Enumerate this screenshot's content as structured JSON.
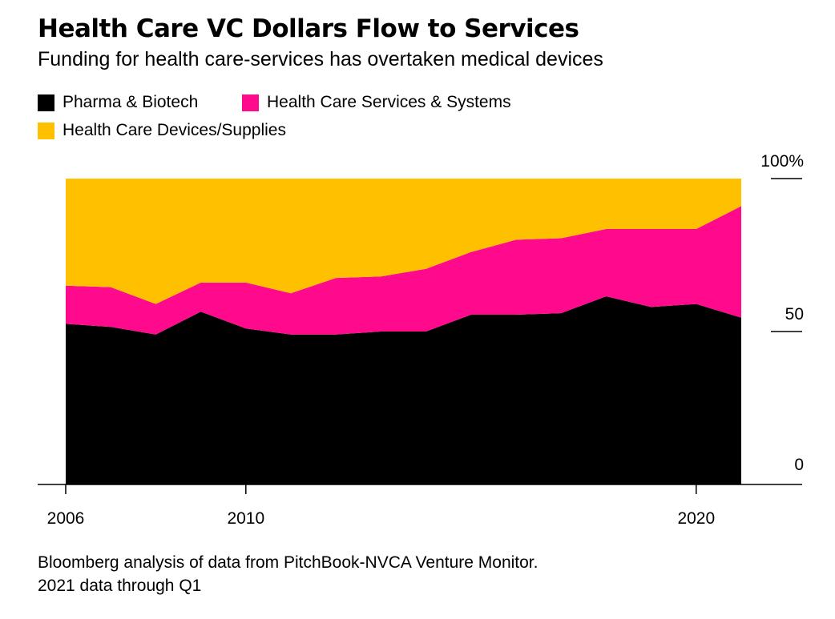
{
  "header": {
    "title": "Health Care VC Dollars Flow to Services",
    "subtitle": "Funding for health care-services has overtaken medical devices"
  },
  "legend": [
    {
      "label": "Pharma & Biotech",
      "color": "#000000"
    },
    {
      "label": "Health Care Services & Systems",
      "color": "#ff0a8c"
    },
    {
      "label": "Health Care Devices/Supplies",
      "color": "#ffc000"
    }
  ],
  "source": {
    "line1": "Bloomberg analysis of data from PitchBook-NVCA Venture Monitor.",
    "line2": "2021 data through Q1"
  },
  "chart_data": {
    "type": "area",
    "stacked": true,
    "x": [
      2006,
      2007,
      2008,
      2009,
      2010,
      2011,
      2012,
      2013,
      2014,
      2015,
      2016,
      2017,
      2018,
      2019,
      2020,
      2021
    ],
    "x_ticks": [
      "2006",
      "2010",
      "2020"
    ],
    "y_ticks": [
      "0",
      "50",
      "100%"
    ],
    "ylim": [
      0,
      100
    ],
    "y_axis_side": "right",
    "grid": false,
    "legend_position": "top",
    "series": [
      {
        "name": "Pharma & Biotech",
        "color": "#000000",
        "values": [
          52.5,
          51.5,
          49.0,
          56.5,
          51.0,
          49.0,
          49.0,
          50.0,
          50.0,
          55.5,
          55.5,
          56.0,
          61.5,
          58.0,
          59.0,
          54.5
        ]
      },
      {
        "name": "Health Care Services & Systems",
        "color": "#ff0a8c",
        "values": [
          12.5,
          13.0,
          10.0,
          9.5,
          15.0,
          13.5,
          18.5,
          18.0,
          20.5,
          20.5,
          24.5,
          24.5,
          22.0,
          25.5,
          24.5,
          36.5
        ]
      },
      {
        "name": "Health Care Devices/Supplies",
        "color": "#ffc000",
        "values": [
          35.0,
          35.5,
          41.0,
          34.0,
          34.0,
          37.5,
          32.5,
          32.0,
          29.5,
          24.0,
          20.0,
          19.5,
          16.5,
          16.5,
          16.5,
          9.0
        ]
      }
    ]
  }
}
